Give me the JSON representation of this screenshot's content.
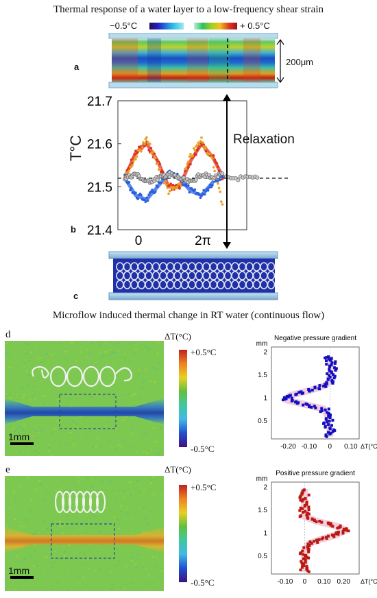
{
  "top": {
    "title": "Thermal response of a water layer to a low-frequency shear strain",
    "scale_min": "−0.5°C",
    "scale_max": "+ 0.5°C",
    "thickness": "200μm",
    "panel_a": "a",
    "panel_b": "b",
    "panel_c": "c",
    "relaxation": "Relaxation"
  },
  "chart_data": [
    {
      "type": "scatter",
      "ylabel": "T°C",
      "yticks": [
        "21.4",
        "21.5",
        "21.6",
        "21.7"
      ],
      "ylim": [
        21.4,
        21.7
      ],
      "xticks": [
        "0",
        "2π"
      ],
      "baseline": 21.52,
      "series": [
        {
          "color": "#e03020",
          "values": [
            21.52,
            21.58,
            21.6,
            21.56,
            21.5,
            21.5,
            21.56,
            21.6,
            21.57,
            21.52
          ]
        },
        {
          "color": "#2a60e0",
          "values": [
            21.52,
            21.48,
            21.47,
            21.5,
            21.53,
            21.52,
            21.49,
            21.48,
            21.51,
            21.53
          ]
        },
        {
          "color": "#e8a020",
          "values": [
            21.52,
            21.57,
            21.61,
            21.55,
            21.49,
            21.5,
            21.57,
            21.61,
            21.56,
            21.45
          ]
        },
        {
          "color": "#777777",
          "values": [
            21.52,
            21.53,
            21.51,
            21.52,
            21.53,
            21.52,
            21.51,
            21.53,
            21.52,
            21.53
          ]
        }
      ]
    },
    {
      "type": "scatter",
      "title": "Negative pressure gradient",
      "yunit": "mm",
      "yticks": [
        "0.5",
        "1",
        "1.5",
        "2"
      ],
      "ylim": [
        0.1,
        2.1
      ],
      "xticks": [
        "-0.20",
        "-0.10",
        "0",
        "0.10"
      ],
      "xlim": [
        -0.28,
        0.14
      ],
      "xlabel": "ΔT(°C)",
      "color": "#1010c0",
      "profile": [
        {
          "y": 0.15,
          "x": 0.0
        },
        {
          "y": 0.3,
          "x": 0.0
        },
        {
          "y": 0.45,
          "x": -0.01
        },
        {
          "y": 0.6,
          "x": -0.01
        },
        {
          "y": 0.75,
          "x": -0.03
        },
        {
          "y": 0.85,
          "x": -0.12
        },
        {
          "y": 0.95,
          "x": -0.21
        },
        {
          "y": 1.05,
          "x": -0.19
        },
        {
          "y": 1.15,
          "x": -0.1
        },
        {
          "y": 1.25,
          "x": -0.03
        },
        {
          "y": 1.35,
          "x": 0.0
        },
        {
          "y": 1.5,
          "x": 0.0
        },
        {
          "y": 1.65,
          "x": 0.01
        },
        {
          "y": 1.8,
          "x": 0.0
        },
        {
          "y": 1.9,
          "x": 0.0
        }
      ]
    },
    {
      "type": "scatter",
      "title": "Positive pressure gradient",
      "yunit": "mm",
      "yticks": [
        "0.5",
        "1",
        "1.5",
        "2"
      ],
      "ylim": [
        0.1,
        2.1
      ],
      "xticks": [
        "-0.10",
        "0",
        "0.10",
        "0.20"
      ],
      "xlim": [
        -0.17,
        0.28
      ],
      "xlabel": "ΔT(°C)",
      "color": "#b81a10",
      "profile": [
        {
          "y": 0.15,
          "x": 0.0
        },
        {
          "y": 0.3,
          "x": 0.0
        },
        {
          "y": 0.45,
          "x": 0.0
        },
        {
          "y": 0.6,
          "x": 0.0
        },
        {
          "y": 0.75,
          "x": 0.02
        },
        {
          "y": 0.85,
          "x": 0.08
        },
        {
          "y": 0.95,
          "x": 0.16
        },
        {
          "y": 1.05,
          "x": 0.21
        },
        {
          "y": 1.15,
          "x": 0.16
        },
        {
          "y": 1.25,
          "x": 0.06
        },
        {
          "y": 1.35,
          "x": 0.0
        },
        {
          "y": 1.5,
          "x": 0.0
        },
        {
          "y": 1.65,
          "x": 0.0
        },
        {
          "y": 1.8,
          "x": 0.0
        },
        {
          "y": 1.95,
          "x": 0.0
        }
      ]
    }
  ],
  "bottom": {
    "title": "Microflow induced thermal change in RT water (continuous flow)",
    "panel_d": "d",
    "panel_e": "e",
    "delta_t": "ΔT(°C)",
    "cb_max": "+0.5°C",
    "cb_min": "-0.5°C",
    "scalebar": "1mm"
  }
}
